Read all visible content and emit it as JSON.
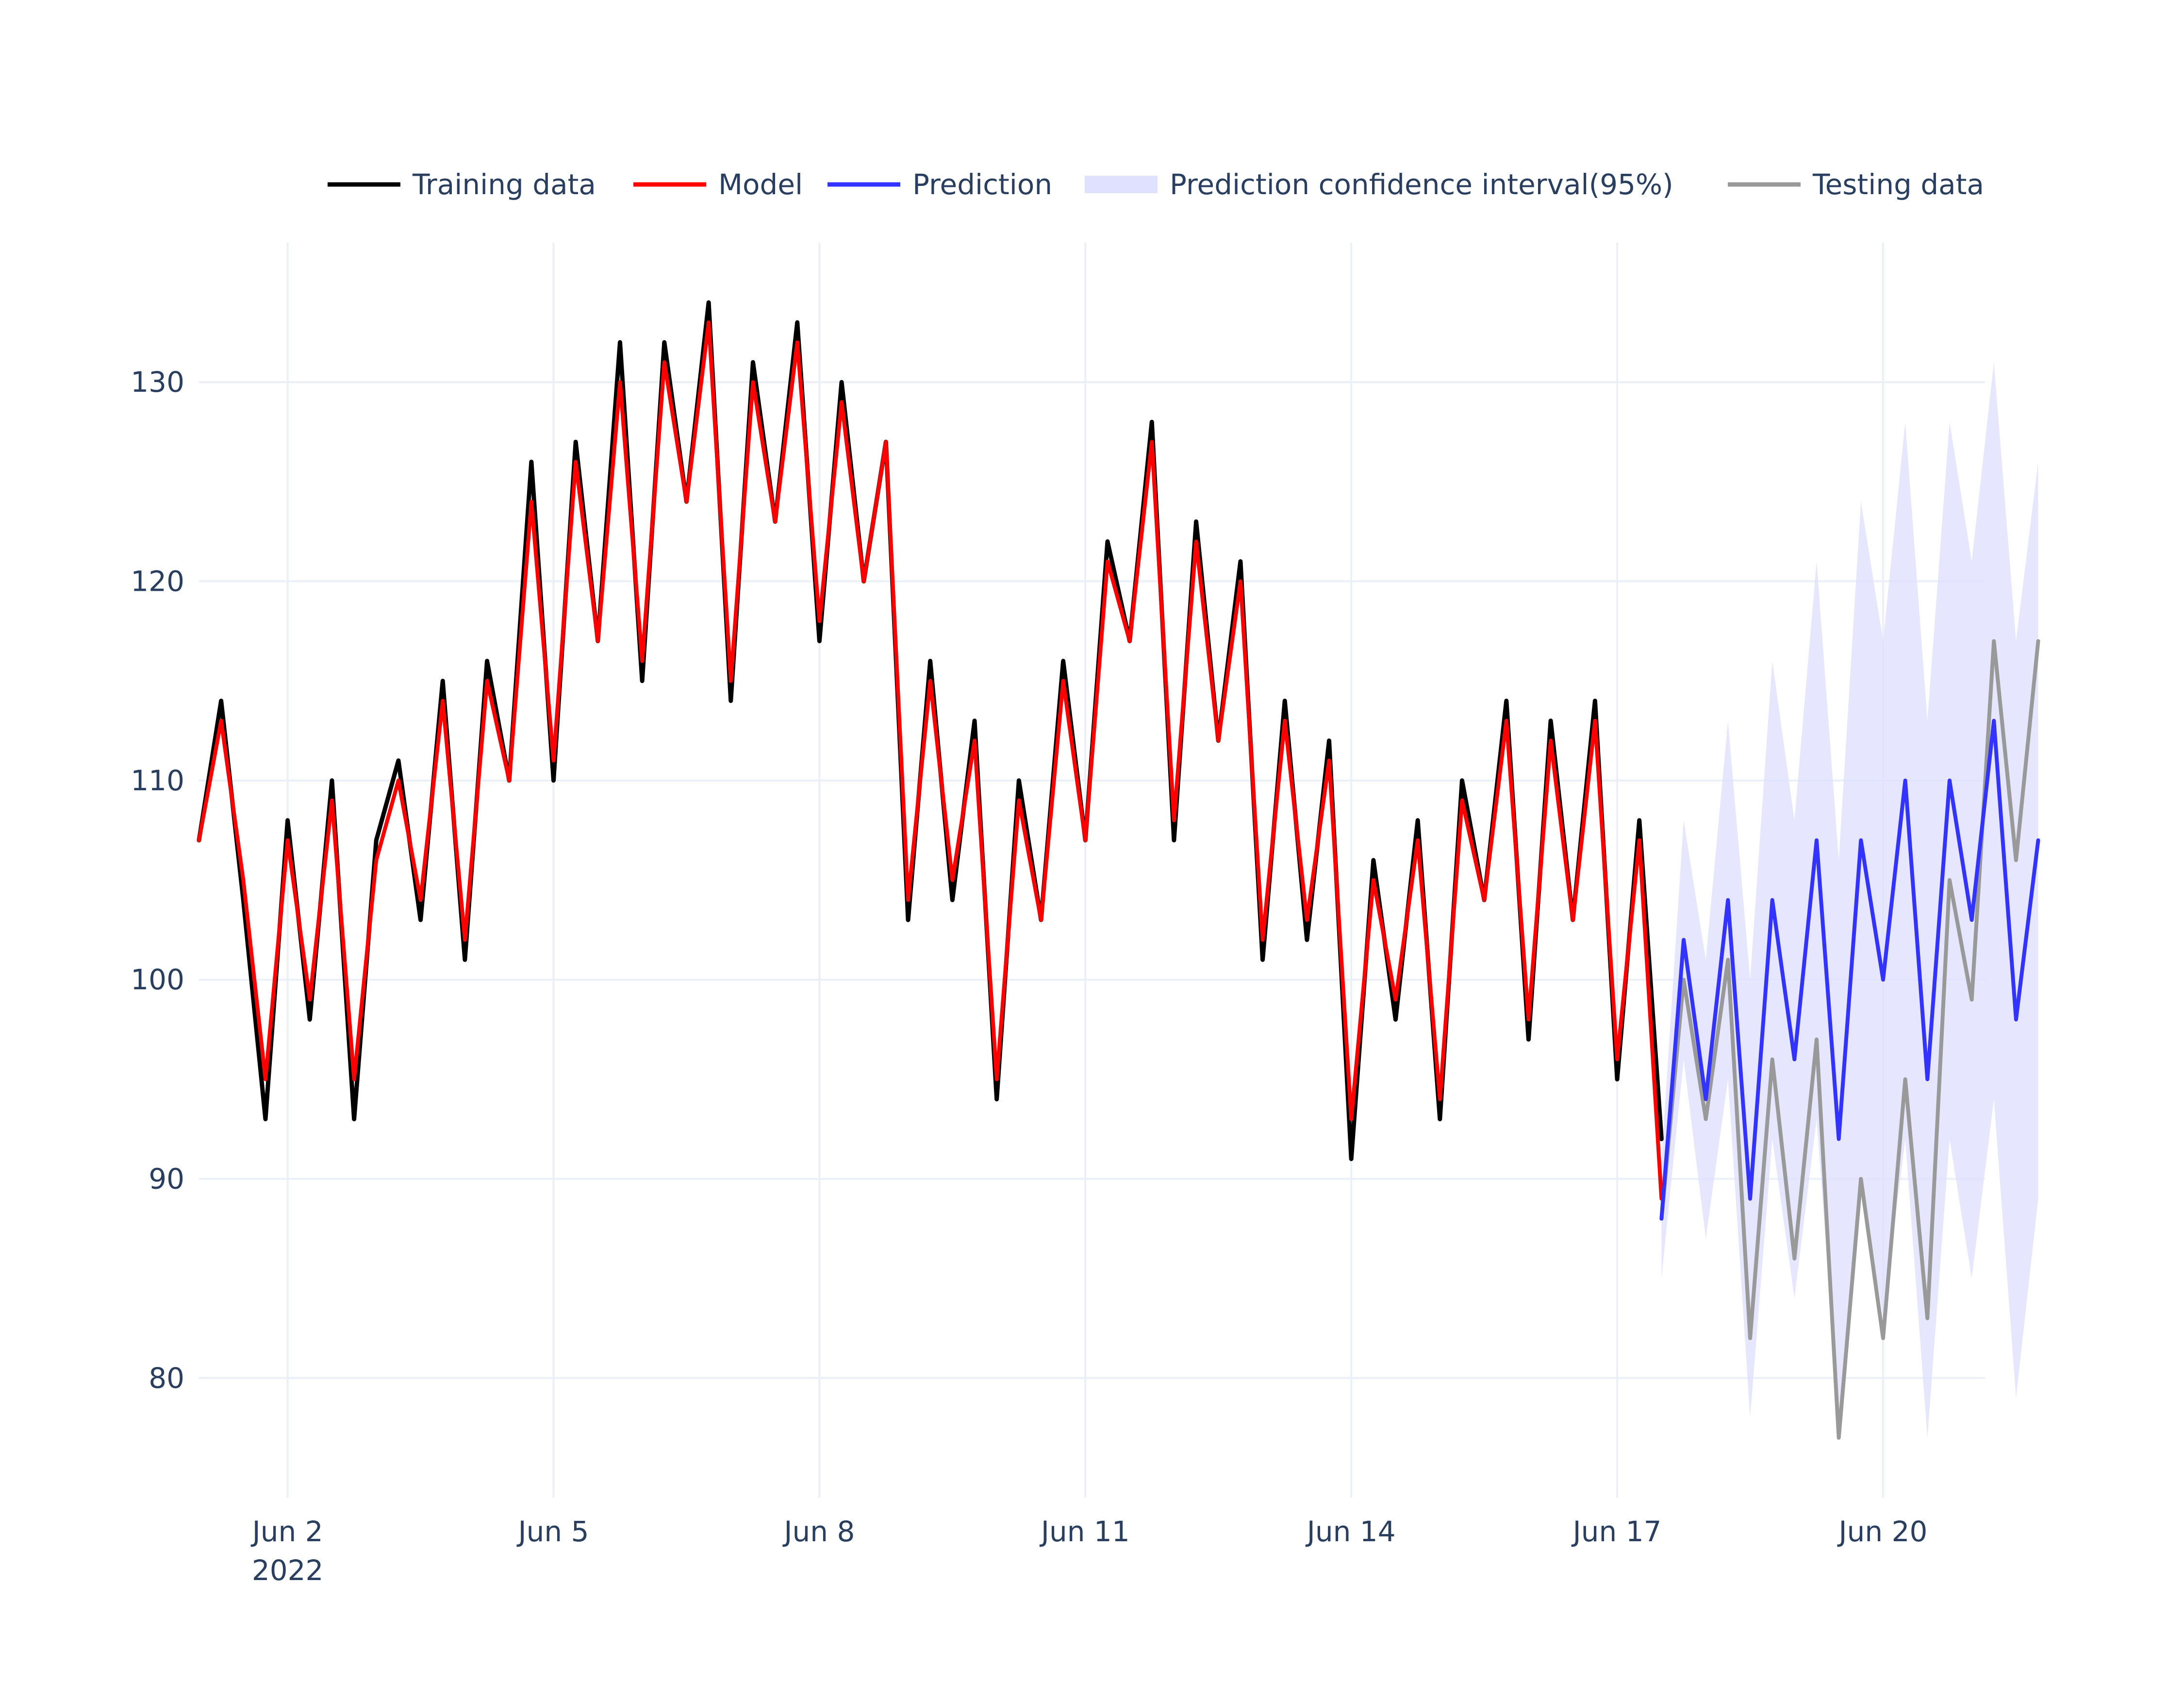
{
  "chart_data": {
    "type": "line",
    "title": "",
    "xlabel": "",
    "ylabel": "",
    "x_axis": {
      "type": "date",
      "range": [
        "2022-06-01",
        "2022-06-21"
      ],
      "ticks": [
        {
          "date": "2022-06-02",
          "label": "Jun 2",
          "sublabel": "2022"
        },
        {
          "date": "2022-06-05",
          "label": "Jun 5"
        },
        {
          "date": "2022-06-08",
          "label": "Jun 8"
        },
        {
          "date": "2022-06-11",
          "label": "Jun 11"
        },
        {
          "date": "2022-06-14",
          "label": "Jun 14"
        },
        {
          "date": "2022-06-17",
          "label": "Jun 17"
        },
        {
          "date": "2022-06-20",
          "label": "Jun 20"
        }
      ]
    },
    "y_axis": {
      "range": [
        74,
        137
      ],
      "ticks": [
        80,
        90,
        100,
        110,
        120,
        130
      ]
    },
    "grid": true,
    "legend_position": "top",
    "legend": [
      {
        "name": "Training data",
        "kind": "line",
        "color": "#000000"
      },
      {
        "name": "Model",
        "kind": "line",
        "color": "#ff0000"
      },
      {
        "name": "Prediction",
        "kind": "line",
        "color": "#3333ff"
      },
      {
        "name": "Prediction confidence interval(95%)",
        "kind": "band",
        "color": "#e0e0ff"
      },
      {
        "name": "Testing data",
        "kind": "line",
        "color": "#999999"
      }
    ],
    "series": [
      {
        "name": "Training data",
        "color": "#000000",
        "x": [
          "2022-06-01T00:00",
          "2022-06-01T06:00",
          "2022-06-01T12:00",
          "2022-06-01T18:00",
          "2022-06-02T00:00",
          "2022-06-02T06:00",
          "2022-06-02T12:00",
          "2022-06-02T18:00",
          "2022-06-03T00:00",
          "2022-06-03T06:00",
          "2022-06-03T12:00",
          "2022-06-03T18:00",
          "2022-06-04T00:00",
          "2022-06-04T06:00",
          "2022-06-04T12:00",
          "2022-06-04T18:00",
          "2022-06-05T00:00",
          "2022-06-05T06:00",
          "2022-06-05T12:00",
          "2022-06-05T18:00",
          "2022-06-06T00:00",
          "2022-06-06T06:00",
          "2022-06-06T12:00",
          "2022-06-06T18:00",
          "2022-06-07T00:00",
          "2022-06-07T06:00",
          "2022-06-07T12:00",
          "2022-06-07T18:00",
          "2022-06-08T00:00",
          "2022-06-08T06:00",
          "2022-06-08T12:00",
          "2022-06-08T18:00",
          "2022-06-09T00:00",
          "2022-06-09T06:00",
          "2022-06-09T12:00",
          "2022-06-09T18:00",
          "2022-06-10T00:00",
          "2022-06-10T06:00",
          "2022-06-10T12:00",
          "2022-06-10T18:00",
          "2022-06-11T00:00",
          "2022-06-11T06:00",
          "2022-06-11T12:00",
          "2022-06-11T18:00",
          "2022-06-12T00:00",
          "2022-06-12T06:00",
          "2022-06-12T12:00",
          "2022-06-12T18:00",
          "2022-06-13T00:00",
          "2022-06-13T06:00",
          "2022-06-13T12:00",
          "2022-06-13T18:00",
          "2022-06-14T00:00",
          "2022-06-14T06:00",
          "2022-06-14T12:00",
          "2022-06-14T18:00",
          "2022-06-15T00:00",
          "2022-06-15T06:00",
          "2022-06-15T12:00",
          "2022-06-15T18:00",
          "2022-06-16T00:00",
          "2022-06-16T06:00",
          "2022-06-16T12:00",
          "2022-06-16T18:00",
          "2022-06-17T00:00",
          "2022-06-17T06:00",
          "2022-06-17T12:00"
        ],
        "y": [
          107,
          114,
          104,
          93,
          108,
          98,
          110,
          93,
          107,
          111,
          103,
          115,
          101,
          116,
          110,
          126,
          110,
          127,
          117,
          132,
          115,
          132,
          124,
          134,
          114,
          131,
          123,
          133,
          117,
          130,
          120,
          127,
          103,
          116,
          104,
          113,
          94,
          110,
          103,
          116,
          107,
          122,
          117,
          128,
          107,
          123,
          112,
          121,
          101,
          114,
          102,
          112,
          91,
          106,
          98,
          108,
          93,
          110,
          104,
          114,
          97,
          113,
          103,
          114,
          95,
          108,
          92
        ]
      },
      {
        "name": "Model",
        "color": "#ff0000",
        "x": [
          "2022-06-01T00:00",
          "2022-06-01T06:00",
          "2022-06-01T12:00",
          "2022-06-01T18:00",
          "2022-06-02T00:00",
          "2022-06-02T06:00",
          "2022-06-02T12:00",
          "2022-06-02T18:00",
          "2022-06-03T00:00",
          "2022-06-03T06:00",
          "2022-06-03T12:00",
          "2022-06-03T18:00",
          "2022-06-04T00:00",
          "2022-06-04T06:00",
          "2022-06-04T12:00",
          "2022-06-04T18:00",
          "2022-06-05T00:00",
          "2022-06-05T06:00",
          "2022-06-05T12:00",
          "2022-06-05T18:00",
          "2022-06-06T00:00",
          "2022-06-06T06:00",
          "2022-06-06T12:00",
          "2022-06-06T18:00",
          "2022-06-07T00:00",
          "2022-06-07T06:00",
          "2022-06-07T12:00",
          "2022-06-07T18:00",
          "2022-06-08T00:00",
          "2022-06-08T06:00",
          "2022-06-08T12:00",
          "2022-06-08T18:00",
          "2022-06-09T00:00",
          "2022-06-09T06:00",
          "2022-06-09T12:00",
          "2022-06-09T18:00",
          "2022-06-10T00:00",
          "2022-06-10T06:00",
          "2022-06-10T12:00",
          "2022-06-10T18:00",
          "2022-06-11T00:00",
          "2022-06-11T06:00",
          "2022-06-11T12:00",
          "2022-06-11T18:00",
          "2022-06-12T00:00",
          "2022-06-12T06:00",
          "2022-06-12T12:00",
          "2022-06-12T18:00",
          "2022-06-13T00:00",
          "2022-06-13T06:00",
          "2022-06-13T12:00",
          "2022-06-13T18:00",
          "2022-06-14T00:00",
          "2022-06-14T06:00",
          "2022-06-14T12:00",
          "2022-06-14T18:00",
          "2022-06-15T00:00",
          "2022-06-15T06:00",
          "2022-06-15T12:00",
          "2022-06-15T18:00",
          "2022-06-16T00:00",
          "2022-06-16T06:00",
          "2022-06-16T12:00",
          "2022-06-16T18:00",
          "2022-06-17T00:00",
          "2022-06-17T06:00",
          "2022-06-17T12:00"
        ],
        "y": [
          107,
          113,
          105,
          95,
          107,
          99,
          109,
          95,
          106,
          110,
          104,
          114,
          102,
          115,
          110,
          124,
          111,
          126,
          117,
          130,
          116,
          131,
          124,
          133,
          115,
          130,
          123,
          132,
          118,
          129,
          120,
          127,
          104,
          115,
          105,
          112,
          95,
          109,
          103,
          115,
          107,
          121,
          117,
          127,
          108,
          122,
          112,
          120,
          102,
          113,
          103,
          111,
          93,
          105,
          99,
          107,
          94,
          109,
          104,
          113,
          98,
          112,
          103,
          113,
          96,
          107,
          89
        ]
      },
      {
        "name": "Testing data",
        "color": "#999999",
        "x": [
          "2022-06-17T12:00",
          "2022-06-17T18:00",
          "2022-06-18T00:00",
          "2022-06-18T06:00",
          "2022-06-18T12:00",
          "2022-06-18T18:00",
          "2022-06-19T00:00",
          "2022-06-19T06:00",
          "2022-06-19T12:00",
          "2022-06-19T18:00",
          "2022-06-20T00:00",
          "2022-06-20T06:00",
          "2022-06-20T12:00",
          "2022-06-20T18:00",
          "2022-06-21T00:00",
          "2022-06-21T06:00",
          "2022-06-21T12:00",
          "2022-06-21T18:00"
        ],
        "y": [
          88,
          100,
          93,
          101,
          82,
          96,
          86,
          97,
          77,
          90,
          82,
          95,
          83,
          105,
          99,
          117,
          106,
          117
        ]
      },
      {
        "name": "Prediction",
        "color": "#3333ff",
        "x": [
          "2022-06-17T12:00",
          "2022-06-17T18:00",
          "2022-06-18T00:00",
          "2022-06-18T06:00",
          "2022-06-18T12:00",
          "2022-06-18T18:00",
          "2022-06-19T00:00",
          "2022-06-19T06:00",
          "2022-06-19T12:00",
          "2022-06-19T18:00",
          "2022-06-20T00:00",
          "2022-06-20T06:00",
          "2022-06-20T12:00",
          "2022-06-20T18:00",
          "2022-06-21T00:00",
          "2022-06-21T06:00",
          "2022-06-21T12:00",
          "2022-06-21T18:00"
        ],
        "y": [
          88,
          102,
          94,
          104,
          89,
          104,
          96,
          107,
          92,
          107,
          100,
          110,
          95,
          110,
          103,
          113,
          98,
          107
        ]
      },
      {
        "name": "Prediction confidence interval(95%)",
        "kind": "band",
        "color": "#e0e0ff",
        "x": [
          "2022-06-17T12:00",
          "2022-06-17T18:00",
          "2022-06-18T00:00",
          "2022-06-18T06:00",
          "2022-06-18T12:00",
          "2022-06-18T18:00",
          "2022-06-19T00:00",
          "2022-06-19T06:00",
          "2022-06-19T12:00",
          "2022-06-19T18:00",
          "2022-06-20T00:00",
          "2022-06-20T06:00",
          "2022-06-20T12:00",
          "2022-06-20T18:00",
          "2022-06-21T00:00",
          "2022-06-21T06:00",
          "2022-06-21T12:00",
          "2022-06-21T18:00"
        ],
        "lower": [
          85,
          96,
          87,
          95,
          78,
          92,
          84,
          93,
          78,
          90,
          83,
          92,
          77,
          92,
          85,
          94,
          79,
          89
        ],
        "upper": [
          91,
          108,
          101,
          113,
          100,
          116,
          108,
          121,
          106,
          124,
          117,
          128,
          113,
          128,
          121,
          131,
          117,
          126
        ]
      }
    ]
  }
}
